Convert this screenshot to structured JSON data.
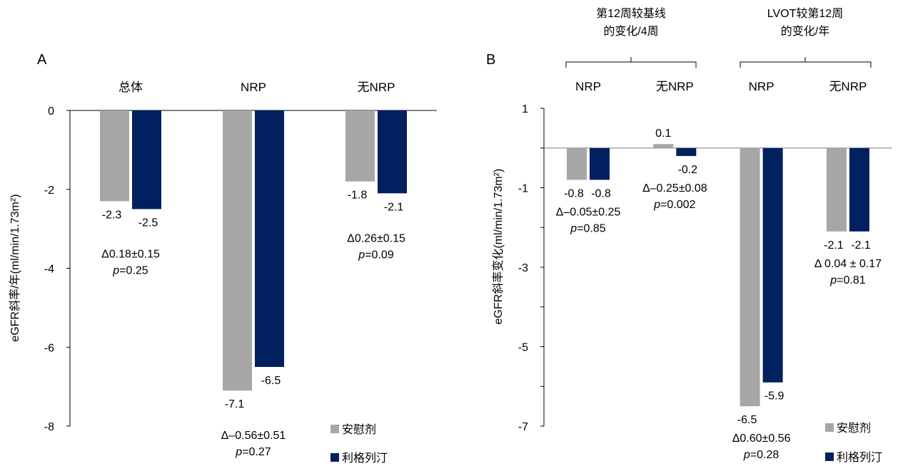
{
  "colors": {
    "placebo": "#a6a6a6",
    "drug": "#002060",
    "axis": "#000000",
    "baseline": "#808080"
  },
  "legend": {
    "placebo": "安慰剂",
    "drug": "利格列汀"
  },
  "chart_data": [
    {
      "type": "bar",
      "panel_label": "A",
      "ylabel": "eGFR斜率/年(ml/min/1.73m²)",
      "ylim": [
        -8,
        0
      ],
      "yticks": [
        0,
        -2,
        -4,
        -6,
        -8
      ],
      "categories": [
        "总体",
        "NRP",
        "无NRP"
      ],
      "series": [
        {
          "name": "安慰剂",
          "values": [
            -2.3,
            -7.1,
            -1.8
          ],
          "labels": [
            "-2.3",
            "-7.1",
            "-1.8"
          ]
        },
        {
          "name": "利格列汀",
          "values": [
            -2.5,
            -6.5,
            -2.1
          ],
          "labels": [
            "-2.5",
            "-6.5",
            "-2.1"
          ]
        }
      ],
      "annotations": [
        {
          "delta": "Δ0.18±0.15",
          "p_prefix": "p",
          "p_value": "=0.25"
        },
        {
          "delta": "Δ–0.56±0.51",
          "p_prefix": "p",
          "p_value": "=0.27"
        },
        {
          "delta": "Δ0.26±0.15",
          "p_prefix": "p",
          "p_value": "=0.09"
        }
      ]
    },
    {
      "type": "bar",
      "panel_label": "B",
      "ylabel": "eGFR斜率变化(ml/min/1.73m²)",
      "ylim": [
        -7,
        1
      ],
      "yticks": [
        1,
        -1,
        -3,
        -5,
        -7
      ],
      "group_headers": [
        {
          "line1": "第12周较基线",
          "line2": "的变化/4周"
        },
        {
          "line1": "LVOT较第12周",
          "line2": "的变化/年"
        }
      ],
      "categories": [
        "NRP",
        "无NRP",
        "NRP",
        "无NRP"
      ],
      "series": [
        {
          "name": "安慰剂",
          "values": [
            -0.8,
            0.1,
            -6.5,
            -2.1
          ],
          "labels": [
            "-0.8",
            "0.1",
            "-6.5",
            "-2.1"
          ]
        },
        {
          "name": "利格列汀",
          "values": [
            -0.8,
            -0.2,
            -5.9,
            -2.1
          ],
          "labels": [
            "-0.8",
            "-0.2",
            "-5.9",
            "-2.1"
          ]
        }
      ],
      "annotations": [
        {
          "delta": "Δ–0.05±0.25",
          "p_prefix": "p",
          "p_value": "=0.85"
        },
        {
          "delta": "Δ–0.25±0.08",
          "p_prefix": "p",
          "p_value": "=0.002"
        },
        {
          "delta": "Δ0.60±0.56",
          "p_prefix": "p",
          "p_value": "=0.28"
        },
        {
          "delta": "Δ 0.04 ± 0.17",
          "p_prefix": "p",
          "p_value": "=0.81"
        }
      ]
    }
  ]
}
